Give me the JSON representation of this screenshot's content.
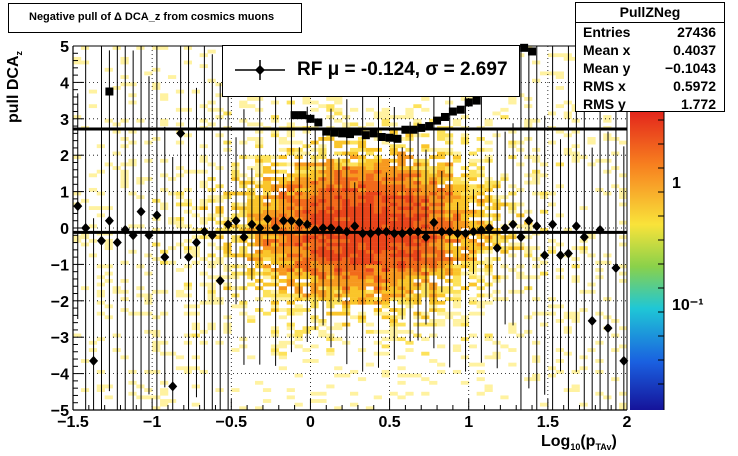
{
  "title": "Negative pull of Δ DCA_z from cosmics muons",
  "stats": {
    "name": "PullZNeg",
    "rows": [
      {
        "key": "Entries",
        "value": "27436"
      },
      {
        "key": "Mean x",
        "value": "0.4037"
      },
      {
        "key": "Mean y",
        "value": "−0.1043"
      },
      {
        "key": "RMS x",
        "value": "0.5972"
      },
      {
        "key": "RMS y",
        "value": "1.772"
      }
    ]
  },
  "legend": {
    "label": "RF μ = -0.124, σ =   2.697"
  },
  "colors": {
    "band_lines": "#000000",
    "markers": "#000000"
  },
  "chart_data": {
    "type": "scatter",
    "xlabel": "Log10(pTAv)",
    "ylabel": "pull DCAz",
    "xlim": [
      -1.5,
      2
    ],
    "ylim": [
      -5,
      5
    ],
    "x_ticks": [
      "−1.5",
      "−1",
      "−0.5",
      "0",
      "0.5",
      "1",
      "1.5",
      "2"
    ],
    "y_ticks": [
      "5",
      "4",
      "3",
      "2",
      "1",
      "0",
      "−1",
      "−2",
      "−3",
      "−4",
      "−5"
    ],
    "colorbar": {
      "log_scale": true,
      "labels": [
        "1",
        "10⁻¹"
      ]
    },
    "horizontal_lines": [
      2.72,
      -0.12
    ],
    "rms_series": {
      "marker": "square",
      "x": [
        -1.27,
        -0.1,
        -0.05,
        0.0,
        0.05,
        0.1,
        0.15,
        0.2,
        0.25,
        0.3,
        0.35,
        0.4,
        0.45,
        0.5,
        0.55,
        0.6,
        0.65,
        0.7,
        0.75,
        0.8,
        0.85,
        0.9,
        0.95,
        1.0,
        1.05,
        1.35,
        1.4
      ],
      "y": [
        3.75,
        3.1,
        3.1,
        3.0,
        2.9,
        2.65,
        2.62,
        2.6,
        2.58,
        2.65,
        2.55,
        2.6,
        2.5,
        2.48,
        2.45,
        2.7,
        2.7,
        2.75,
        2.8,
        2.95,
        3.05,
        3.2,
        3.25,
        3.45,
        3.5,
        4.95,
        4.85
      ]
    },
    "mean_series": {
      "marker": "diamond",
      "x": [
        -1.47,
        -1.42,
        -1.37,
        -1.32,
        -1.27,
        -1.22,
        -1.17,
        -1.12,
        -1.07,
        -1.02,
        -0.97,
        -0.92,
        -0.87,
        -0.82,
        -0.77,
        -0.72,
        -0.67,
        -0.62,
        -0.57,
        -0.52,
        -0.47,
        -0.42,
        -0.37,
        -0.32,
        -0.27,
        -0.22,
        -0.17,
        -0.12,
        -0.07,
        -0.02,
        0.03,
        0.08,
        0.13,
        0.18,
        0.23,
        0.28,
        0.33,
        0.38,
        0.43,
        0.48,
        0.53,
        0.58,
        0.63,
        0.68,
        0.73,
        0.78,
        0.83,
        0.88,
        0.93,
        0.98,
        1.03,
        1.08,
        1.13,
        1.18,
        1.23,
        1.28,
        1.33,
        1.38,
        1.43,
        1.48,
        1.53,
        1.58,
        1.63,
        1.68,
        1.73,
        1.78,
        1.83,
        1.88,
        1.93,
        1.98
      ],
      "y": [
        0.6,
        0.0,
        -3.65,
        -0.35,
        0.2,
        -0.4,
        -0.05,
        -0.2,
        0.45,
        -0.2,
        0.35,
        -0.8,
        -4.35,
        2.6,
        -0.8,
        -0.4,
        -0.1,
        -0.2,
        -1.45,
        0.1,
        0.2,
        -0.25,
        0.1,
        0.0,
        0.25,
        0.0,
        0.2,
        0.2,
        0.15,
        0.1,
        -0.05,
        0.0,
        0.0,
        -0.05,
        -0.1,
        0.05,
        -0.15,
        -0.15,
        -0.1,
        -0.1,
        -0.15,
        -0.15,
        -0.1,
        -0.1,
        -0.25,
        0.15,
        -0.1,
        -0.1,
        -0.15,
        -0.15,
        -0.1,
        -0.05,
        0.0,
        -0.55,
        0.0,
        0.1,
        -0.25,
        0.2,
        0.05,
        -0.75,
        0.1,
        -0.75,
        -0.7,
        0.05,
        -0.25,
        -2.55,
        -0.05,
        -2.75,
        -1.1,
        -3.65
      ]
    }
  }
}
